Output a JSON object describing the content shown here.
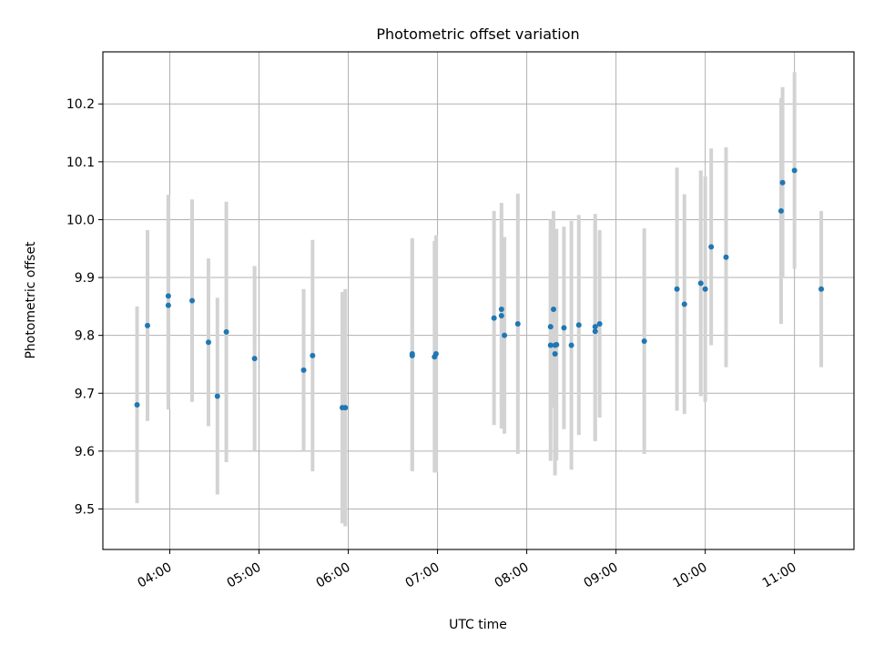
{
  "chart_data": {
    "type": "scatter",
    "title": "Photometric offset variation",
    "xlabel": "UTC time",
    "ylabel": "Photometric offset",
    "grid": true,
    "xlim": [
      "03:15",
      "11:40"
    ],
    "ylim": [
      9.43,
      10.29
    ],
    "x_ticks": [
      "04:00",
      "05:00",
      "06:00",
      "07:00",
      "08:00",
      "09:00",
      "10:00",
      "11:00"
    ],
    "y_ticks": [
      "9.5",
      "9.6",
      "9.7",
      "9.8",
      "9.9",
      "10.0",
      "10.1",
      "10.2"
    ],
    "colors": {
      "points": "#1f77b4",
      "error_bars": "#d3d3d3",
      "grid": "#b0b0b0"
    },
    "series": [
      {
        "x": [
          "03:38",
          "03:45",
          "03:59",
          "03:59",
          "04:15",
          "04:26",
          "04:32",
          "04:38",
          "04:57",
          "05:30",
          "05:36",
          "05:56",
          "05:58",
          "06:43",
          "06:43",
          "06:58",
          "06:59",
          "07:38",
          "07:43",
          "07:43",
          "07:45",
          "07:54",
          "08:16",
          "08:16",
          "08:18",
          "08:19",
          "08:19",
          "08:20",
          "08:25",
          "08:30",
          "08:35",
          "08:46",
          "08:46",
          "08:49",
          "09:19",
          "09:41",
          "09:46",
          "09:57",
          "10:00",
          "10:04",
          "10:14",
          "10:51",
          "10:52",
          "11:00",
          "11:18"
        ],
        "y": [
          9.68,
          9.817,
          9.852,
          9.868,
          9.86,
          9.788,
          9.695,
          9.806,
          9.76,
          9.74,
          9.765,
          9.675,
          9.675,
          9.765,
          9.768,
          9.763,
          9.768,
          9.83,
          9.834,
          9.845,
          9.8,
          9.82,
          9.815,
          9.783,
          9.845,
          9.768,
          9.783,
          9.784,
          9.813,
          9.783,
          9.818,
          9.807,
          9.815,
          9.82,
          9.79,
          9.88,
          9.854,
          9.89,
          9.88,
          9.953,
          9.935,
          10.015,
          10.064,
          10.085,
          9.88
        ],
        "yerr": [
          0.17,
          0.165,
          0.18,
          0.175,
          0.175,
          0.145,
          0.17,
          0.225,
          0.16,
          0.14,
          0.2,
          0.2,
          0.205,
          0.2,
          0.2,
          0.2,
          0.205,
          0.185,
          0.195,
          0.17,
          0.17,
          0.225,
          0.185,
          0.2,
          0.17,
          0.21,
          0.2,
          0.2,
          0.175,
          0.215,
          0.19,
          0.19,
          0.195,
          0.162,
          0.195,
          0.21,
          0.19,
          0.195,
          0.195,
          0.17,
          0.19,
          0.195,
          0.165,
          0.17,
          0.135
        ]
      }
    ]
  }
}
